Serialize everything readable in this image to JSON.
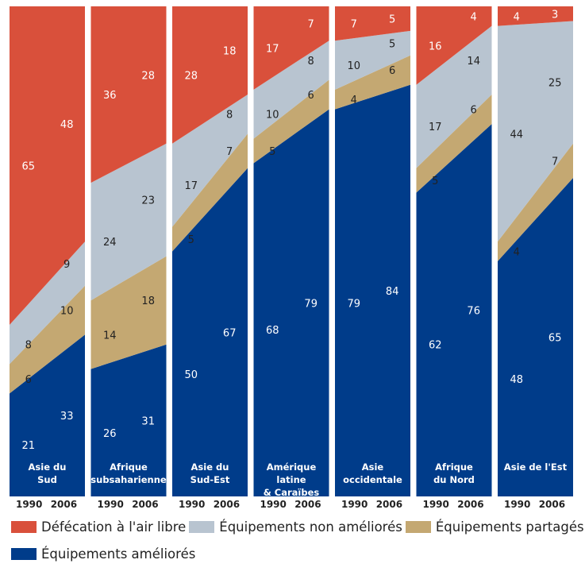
{
  "chart_data": {
    "type": "area",
    "x": [
      "1990",
      "2006"
    ],
    "stack_order": [
      "Équipements améliorés",
      "Équipements partagés",
      "Équipements non améliorés",
      "Défécation à l'air libre"
    ],
    "colors": {
      "Défécation à l'air libre": "#d9503b",
      "Équipements non améliorés": "#b8c4d0",
      "Équipements partagés": "#c4a872",
      "Équipements améliorés": "#003c8a"
    },
    "ylim": [
      0,
      100
    ],
    "panels": [
      {
        "region": [
          "Asie du",
          "Sud"
        ],
        "values": {
          "Équipements améliorés": [
            21,
            33
          ],
          "Équipements partagés": [
            6,
            10
          ],
          "Équipements non améliorés": [
            8,
            9
          ],
          "Défécation à l'air libre": [
            65,
            48
          ]
        }
      },
      {
        "region": [
          "Afrique",
          "subsaharienne"
        ],
        "values": {
          "Équipements améliorés": [
            26,
            31
          ],
          "Équipements partagés": [
            14,
            18
          ],
          "Équipements non améliorés": [
            24,
            23
          ],
          "Défécation à l'air libre": [
            36,
            28
          ]
        }
      },
      {
        "region": [
          "Asie du",
          "Sud-Est"
        ],
        "values": {
          "Équipements améliorés": [
            50,
            67
          ],
          "Équipements partagés": [
            5,
            7
          ],
          "Équipements non améliorés": [
            17,
            8
          ],
          "Défécation à l'air libre": [
            28,
            18
          ]
        }
      },
      {
        "region": [
          "Amérique",
          "latine",
          "& Caraïbes"
        ],
        "values": {
          "Équipements améliorés": [
            68,
            79
          ],
          "Équipements partagés": [
            5,
            6
          ],
          "Équipements non améliorés": [
            10,
            8
          ],
          "Défécation à l'air libre": [
            17,
            7
          ]
        }
      },
      {
        "region": [
          "Asie",
          "occidentale"
        ],
        "values": {
          "Équipements améliorés": [
            79,
            84
          ],
          "Équipements partagés": [
            4,
            6
          ],
          "Équipements non améliorés": [
            10,
            5
          ],
          "Défécation à l'air libre": [
            7,
            5
          ]
        }
      },
      {
        "region": [
          "Afrique",
          "du Nord"
        ],
        "values": {
          "Équipements améliorés": [
            62,
            76
          ],
          "Équipements partagés": [
            5,
            6
          ],
          "Équipements non améliorés": [
            17,
            14
          ],
          "Défécation à l'air libre": [
            16,
            4
          ]
        }
      },
      {
        "region": [
          "Asie de l'Est"
        ],
        "values": {
          "Équipements améliorés": [
            48,
            65
          ],
          "Équipements partagés": [
            4,
            7
          ],
          "Équipements non améliorés": [
            44,
            25
          ],
          "Défécation à l'air libre": [
            4,
            3
          ]
        }
      }
    ]
  },
  "legend": {
    "items": [
      {
        "label": "Défécation à l'air libre",
        "color": "#d9503b"
      },
      {
        "label": "Équipements non améliorés",
        "color": "#b8c4d0"
      },
      {
        "label": "Équipements partagés",
        "color": "#c4a872"
      },
      {
        "label": "Équipements améliorés",
        "color": "#003c8a"
      }
    ]
  }
}
